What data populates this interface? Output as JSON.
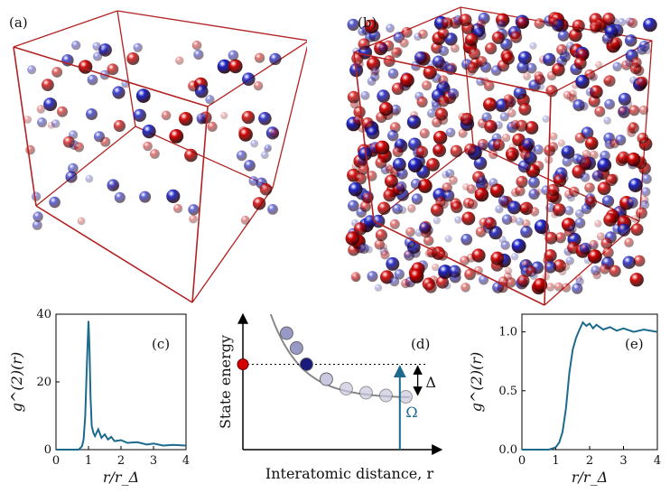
{
  "panels": {
    "a": {
      "label": "(a)"
    },
    "b": {
      "label": "(b)"
    },
    "c": {
      "label": "(c)"
    },
    "d": {
      "label": "(d)"
    },
    "e": {
      "label": "(e)"
    }
  },
  "colors": {
    "box_edge": "#b22222",
    "atom_red": "#d40000",
    "atom_blue": "#1a22c8",
    "curve": "#1c6a8c",
    "level": "#888888"
  },
  "chart_data": [
    {
      "id": "c",
      "type": "line",
      "xlabel": "r/r_Δ",
      "ylabel": "g^(2)(r)",
      "xlim": [
        0,
        4
      ],
      "ylim": [
        0,
        40
      ],
      "xticks": [
        "0",
        "1",
        "2",
        "3",
        "4"
      ],
      "yticks": [
        "0",
        "20",
        "40"
      ],
      "series": [
        {
          "x": [
            0.0,
            0.5,
            0.7,
            0.8,
            0.85,
            0.9,
            0.95,
            1.0,
            1.03,
            1.06,
            1.1,
            1.15,
            1.2,
            1.3,
            1.4,
            1.5,
            1.6,
            1.7,
            1.8,
            2.0,
            2.2,
            2.5,
            2.8,
            3.0,
            3.3,
            3.6,
            4.0
          ],
          "y": [
            0,
            0,
            0,
            1,
            3,
            10,
            25,
            38,
            30,
            16,
            7,
            5,
            4,
            6,
            3.5,
            4.5,
            3,
            3.8,
            2.5,
            2.8,
            2,
            2.2,
            1.5,
            1.8,
            1.2,
            1.4,
            1.2
          ]
        }
      ]
    },
    {
      "id": "d",
      "type": "scatter",
      "xlabel": "Interatomic distance, r",
      "ylabel": "State energy",
      "annotations": [
        "Δ",
        "Ω"
      ],
      "series": [
        {
          "x": [
            0.22,
            0.27,
            0.32,
            0.42,
            0.52,
            0.62,
            0.72,
            0.82
          ],
          "y": [
            0.86,
            0.75,
            0.63,
            0.52,
            0.45,
            0.42,
            0.4,
            0.39
          ]
        }
      ]
    },
    {
      "id": "e",
      "type": "line",
      "xlabel": "r/r_Δ",
      "ylabel": "g^(2)(r)",
      "xlim": [
        0,
        4
      ],
      "ylim": [
        0,
        1.15
      ],
      "xticks": [
        "0",
        "1",
        "2",
        "3",
        "4"
      ],
      "yticks": [
        "0.0",
        "0.5",
        "1.0"
      ],
      "series": [
        {
          "x": [
            0.0,
            0.8,
            1.0,
            1.1,
            1.2,
            1.3,
            1.4,
            1.5,
            1.6,
            1.7,
            1.8,
            1.9,
            2.0,
            2.1,
            2.2,
            2.4,
            2.6,
            2.8,
            3.0,
            3.3,
            3.6,
            4.0
          ],
          "y": [
            0.0,
            0.0,
            0.02,
            0.06,
            0.15,
            0.35,
            0.65,
            0.85,
            0.95,
            1.02,
            1.08,
            1.05,
            1.07,
            1.03,
            1.06,
            1.02,
            1.04,
            1.01,
            1.03,
            1.0,
            1.02,
            1.0
          ]
        }
      ]
    }
  ]
}
